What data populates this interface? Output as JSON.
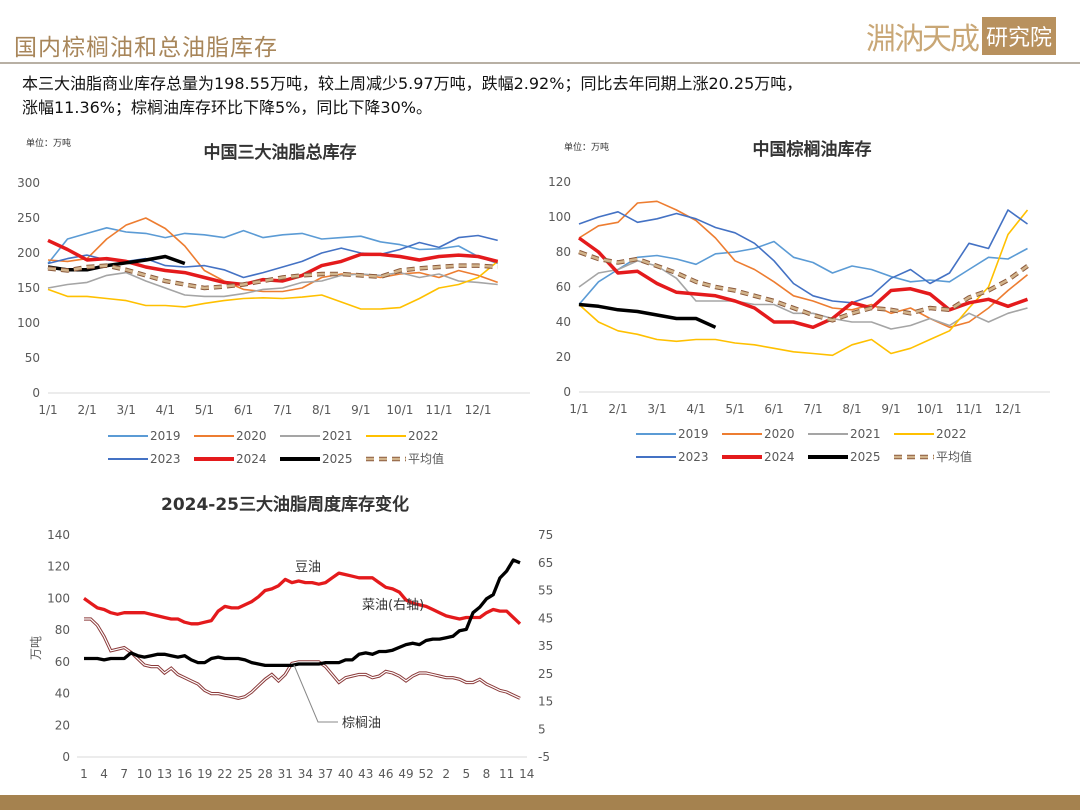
{
  "header": {
    "title": "国内棕榈油和总油脂库存",
    "logo_text": "淵汭天成",
    "logo_badge": "研究院"
  },
  "summary": [
    "本三大油脂商业库存总量为198.55万吨，较上周减少5.97万吨，跌幅2.92%；同比去年同期上涨20.25万吨，",
    "涨幅11.36%；棕榈油库存环比下降5%，同比下降30%。"
  ],
  "colors": {
    "2019": "#5b9bd5",
    "2020": "#ed7d31",
    "2021": "#a5a5a5",
    "2022": "#ffc000",
    "2023": "#4472c4",
    "2024": "#e41a1c",
    "2025": "#000000",
    "avg": "#d2b48c",
    "brand": "#a5824f"
  },
  "chart_data": [
    {
      "type": "line",
      "title": "中国三大油脂总库存",
      "unit": "单位：万吨",
      "ylim": [
        0,
        300
      ],
      "yticks": [
        0,
        50,
        100,
        150,
        200,
        250,
        300
      ],
      "xticks": [
        "1/1",
        "2/1",
        "3/1",
        "4/1",
        "5/1",
        "6/1",
        "7/1",
        "8/1",
        "9/1",
        "10/1",
        "11/1",
        "12/1"
      ],
      "grid": false,
      "legend": "bottom",
      "x_step_months": 0.5,
      "series": [
        {
          "name": "2019",
          "values": [
            185,
            220,
            228,
            236,
            230,
            228,
            222,
            228,
            226,
            222,
            232,
            222,
            226,
            228,
            220,
            222,
            224,
            216,
            212,
            205,
            206,
            210,
            195,
            185
          ]
        },
        {
          "name": "2020",
          "values": [
            190,
            188,
            192,
            220,
            240,
            250,
            235,
            210,
            175,
            160,
            148,
            145,
            145,
            150,
            165,
            170,
            170,
            165,
            170,
            172,
            165,
            175,
            168,
            158
          ]
        },
        {
          "name": "2021",
          "values": [
            150,
            155,
            158,
            168,
            172,
            160,
            150,
            140,
            138,
            138,
            142,
            148,
            150,
            158,
            160,
            168,
            170,
            168,
            172,
            165,
            170,
            160,
            158,
            155
          ]
        },
        {
          "name": "2022",
          "values": [
            148,
            138,
            138,
            135,
            132,
            125,
            125,
            123,
            128,
            132,
            135,
            136,
            135,
            137,
            140,
            130,
            120,
            120,
            122,
            135,
            150,
            155,
            165,
            188
          ]
        },
        {
          "name": "2023",
          "values": [
            185,
            192,
            197,
            190,
            188,
            192,
            182,
            180,
            182,
            176,
            165,
            172,
            180,
            188,
            200,
            207,
            200,
            198,
            205,
            215,
            208,
            222,
            225,
            218
          ]
        },
        {
          "name": "2024",
          "values": [
            218,
            205,
            190,
            192,
            188,
            180,
            175,
            172,
            165,
            158,
            155,
            162,
            160,
            168,
            182,
            188,
            198,
            198,
            195,
            190,
            195,
            197,
            195,
            188
          ]
        },
        {
          "name": "2025",
          "values": [
            180,
            176,
            176,
            182,
            186,
            190,
            195,
            185
          ]
        },
        {
          "name": "平均值",
          "values": [
            178,
            175,
            180,
            182,
            176,
            168,
            160,
            155,
            150,
            152,
            155,
            160,
            165,
            168,
            170,
            170,
            168,
            166,
            175,
            178,
            180,
            182,
            182,
            180
          ]
        }
      ]
    },
    {
      "type": "line",
      "title": "中国棕榈油库存",
      "unit": "单位：万吨",
      "ylim": [
        0,
        120
      ],
      "yticks": [
        0,
        20,
        40,
        60,
        80,
        100,
        120
      ],
      "xticks": [
        "1/1",
        "2/1",
        "3/1",
        "4/1",
        "5/1",
        "6/1",
        "7/1",
        "8/1",
        "9/1",
        "10/1",
        "11/1",
        "12/1"
      ],
      "grid": false,
      "legend": "bottom",
      "x_step_months": 0.5,
      "series": [
        {
          "name": "2019",
          "values": [
            50,
            63,
            70,
            77,
            78,
            76,
            73,
            79,
            80,
            82,
            86,
            77,
            74,
            68,
            72,
            70,
            66,
            63,
            64,
            63,
            70,
            77,
            76,
            82
          ]
        },
        {
          "name": "2020",
          "values": [
            88,
            95,
            97,
            108,
            109,
            104,
            98,
            88,
            75,
            70,
            63,
            55,
            52,
            48,
            47,
            50,
            45,
            48,
            42,
            37,
            40,
            48,
            58,
            67
          ]
        },
        {
          "name": "2021",
          "values": [
            60,
            68,
            70,
            75,
            72,
            65,
            52,
            52,
            52,
            50,
            50,
            45,
            45,
            42,
            40,
            40,
            36,
            38,
            42,
            38,
            45,
            40,
            45,
            48
          ]
        },
        {
          "name": "2022",
          "values": [
            50,
            40,
            35,
            33,
            30,
            29,
            30,
            30,
            28,
            27,
            25,
            23,
            22,
            21,
            27,
            30,
            22,
            25,
            30,
            35,
            48,
            60,
            90,
            104
          ]
        },
        {
          "name": "2023",
          "values": [
            96,
            100,
            103,
            97,
            99,
            102,
            99,
            94,
            91,
            85,
            75,
            62,
            55,
            52,
            51,
            55,
            65,
            70,
            62,
            68,
            85,
            82,
            104,
            96
          ]
        },
        {
          "name": "2024",
          "values": [
            88,
            80,
            68,
            69,
            62,
            57,
            56,
            55,
            52,
            48,
            40,
            40,
            37,
            42,
            51,
            48,
            58,
            59,
            56,
            47,
            51,
            53,
            49,
            53
          ]
        },
        {
          "name": "2025",
          "values": [
            50,
            49,
            47,
            46,
            44,
            42,
            42,
            37
          ]
        },
        {
          "name": "平均值",
          "values": [
            80,
            76,
            74,
            76,
            72,
            68,
            63,
            60,
            58,
            55,
            52,
            48,
            44,
            41,
            45,
            48,
            47,
            45,
            48,
            47,
            54,
            58,
            64,
            72
          ]
        }
      ]
    },
    {
      "type": "line",
      "title": "2024-25三大油脂周度库存变化",
      "ylabel": "万吨",
      "ylim": [
        0,
        140
      ],
      "yticks": [
        0,
        20,
        40,
        60,
        80,
        100,
        120,
        140
      ],
      "y2lim": [
        -5,
        75
      ],
      "y2ticks": [
        -5,
        5,
        15,
        25,
        35,
        45,
        55,
        65,
        75
      ],
      "xticks": [
        "1",
        "4",
        "7",
        "10",
        "13",
        "16",
        "19",
        "22",
        "25",
        "28",
        "31",
        "34",
        "37",
        "40",
        "43",
        "46",
        "49",
        "52",
        "2",
        "5",
        "8",
        "11",
        "14"
      ],
      "weeks": [
        1,
        2,
        3,
        4,
        5,
        6,
        7,
        8,
        9,
        10,
        11,
        12,
        13,
        14,
        15,
        16,
        17,
        18,
        19,
        20,
        21,
        22,
        23,
        24,
        25,
        26,
        27,
        28,
        29,
        30,
        31,
        32,
        33,
        34,
        35,
        36,
        37,
        38,
        39,
        40,
        41,
        42,
        43,
        44,
        45,
        46,
        47,
        48,
        49,
        50,
        51,
        52,
        1,
        2,
        3,
        4,
        5,
        6,
        7,
        8,
        9,
        10,
        11,
        12,
        13,
        14
      ],
      "series": [
        {
          "name": "豆油",
          "axis": "left",
          "values": [
            100,
            97,
            94,
            93,
            91,
            90,
            91,
            91,
            91,
            91,
            90,
            89,
            88,
            87,
            87,
            85,
            84,
            84,
            85,
            86,
            92,
            95,
            94,
            94,
            96,
            98,
            101,
            105,
            106,
            108,
            112,
            110,
            111,
            110,
            110,
            109,
            110,
            113,
            116,
            115,
            114,
            113,
            113,
            113,
            110,
            107,
            106,
            104,
            99,
            97,
            96,
            95,
            93,
            91,
            89,
            88,
            87,
            88,
            88,
            88,
            91,
            93,
            92,
            92,
            88,
            84
          ]
        },
        {
          "name": "棕榈油",
          "axis": "left",
          "values": [
            87,
            87,
            83,
            76,
            67,
            68,
            69,
            66,
            62,
            58,
            57,
            57,
            53,
            56,
            52,
            50,
            48,
            46,
            42,
            40,
            40,
            39,
            38,
            37,
            38,
            41,
            45,
            49,
            52,
            48,
            52,
            59,
            60,
            60,
            60,
            60,
            57,
            52,
            47,
            50,
            51,
            52,
            52,
            50,
            51,
            54,
            53,
            51,
            48,
            51,
            53,
            53,
            52,
            51,
            50,
            50,
            49,
            47,
            47,
            49,
            46,
            44,
            42,
            41,
            39,
            37
          ]
        },
        {
          "name": "菜油(右轴)",
          "axis": "right",
          "values": [
            30.5,
            30.5,
            30.5,
            30,
            30.5,
            30.5,
            30.5,
            32.5,
            31.5,
            31,
            31.5,
            32,
            32,
            31.5,
            31,
            31.5,
            30,
            29,
            29,
            30.5,
            31,
            30.5,
            30.5,
            30.5,
            30,
            29,
            28.5,
            28,
            28,
            28,
            28,
            28,
            28.5,
            28.5,
            28.5,
            28.5,
            29,
            29,
            29,
            30,
            30,
            32,
            32.5,
            32,
            33,
            33,
            33.5,
            34.5,
            35.5,
            36,
            35.5,
            37,
            37.5,
            37.5,
            38,
            38.5,
            40.5,
            41,
            47,
            49,
            52,
            53.5,
            59.5,
            62,
            66,
            65
          ]
        }
      ]
    }
  ]
}
